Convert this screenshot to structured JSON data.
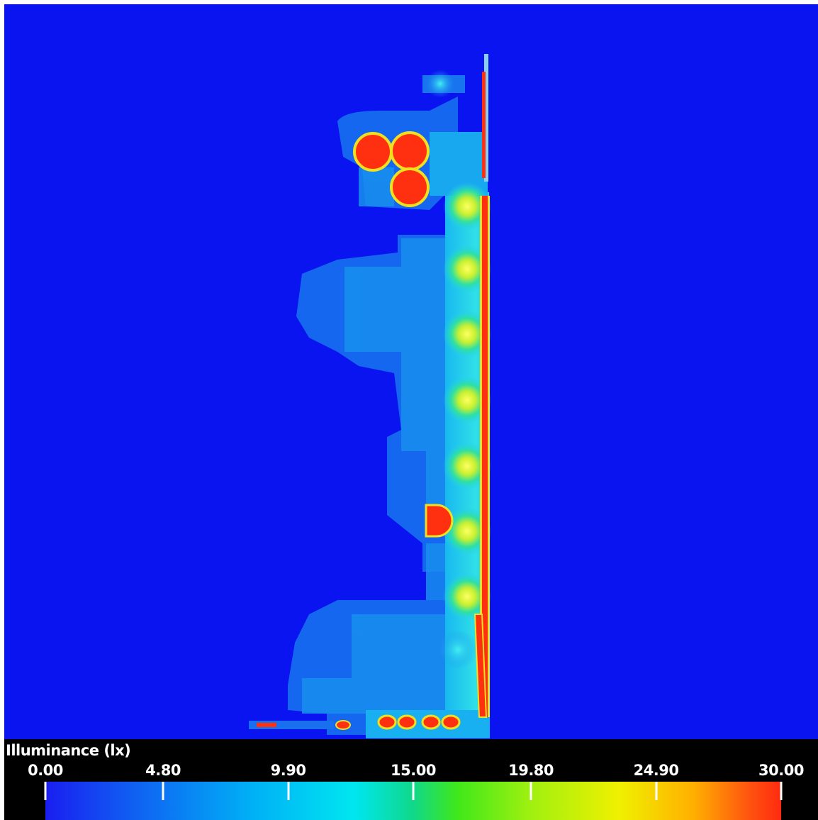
{
  "legend": {
    "title": "Illuminance (lx)",
    "ticks": [
      "0.00",
      "4.80",
      "9.90",
      "15.00",
      "19.80",
      "24.90",
      "30.00"
    ],
    "range": [
      0,
      30
    ],
    "unit": "lx"
  },
  "colors": {
    "background": "#0a14f0",
    "low": "#1a1ef0",
    "mid": "#10d88a",
    "high": "#ff2a10"
  }
}
